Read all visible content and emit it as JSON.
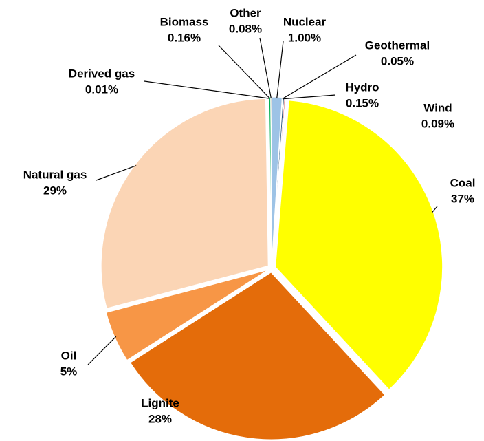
{
  "chart_data": {
    "type": "pie",
    "categories": [
      "Nuclear",
      "Geothermal",
      "Hydro",
      "Wind",
      "Coal",
      "Lignite",
      "Oil",
      "Natural gas",
      "Derived gas",
      "Biomass",
      "Other"
    ],
    "values": [
      1.0,
      0.05,
      0.15,
      0.09,
      37,
      28,
      5,
      29,
      0.01,
      0.16,
      0.08
    ],
    "value_labels": [
      "1.00%",
      "0.05%",
      "0.15%",
      "0.09%",
      "37%",
      "28%",
      "5%",
      "29%",
      "0.01%",
      "0.16%",
      "0.08%"
    ],
    "colors": [
      "#9dc3e6",
      "#7f7f7f",
      "#1f4e79",
      "#c00000",
      "#ffff00",
      "#e46c0a",
      "#f79646",
      "#fbd5b5",
      "#ffffff",
      "#00b050",
      "#404040"
    ]
  }
}
